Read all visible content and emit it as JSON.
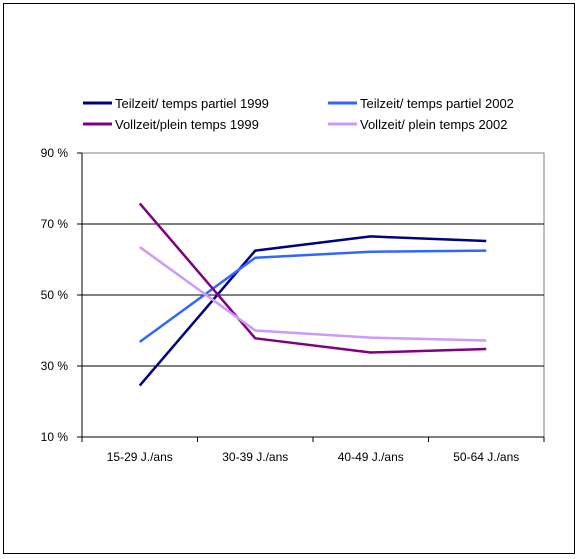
{
  "chart_data": {
    "type": "line",
    "title": "",
    "xlabel": "",
    "ylabel": "",
    "categories": [
      "15-29 J./ans",
      "30-39 J./ans",
      "40-49 J./ans",
      "50-64 J./ans"
    ],
    "ylim": [
      10,
      90
    ],
    "yticks": [
      10,
      30,
      50,
      70,
      90
    ],
    "ytick_labels": [
      "10 %",
      "30 %",
      "50 %",
      "70 %",
      "90 %"
    ],
    "grid": true,
    "legend_position": "top",
    "series": [
      {
        "name": "Teilzeit/ temps partiel 1999",
        "color": "#000080",
        "values": [
          24.5,
          62.5,
          66.5,
          65.2
        ]
      },
      {
        "name": "Teilzeit/ temps partiel 2002",
        "color": "#3366ff",
        "values": [
          36.8,
          60.5,
          62.2,
          62.5
        ]
      },
      {
        "name": "Vollzeit/plein temps 1999",
        "color": "#800080",
        "values": [
          75.8,
          37.8,
          33.8,
          34.8
        ]
      },
      {
        "name": "Vollzeit/ plein temps 2002",
        "color": "#cc99ff",
        "values": [
          63.5,
          40.0,
          38.0,
          37.2
        ]
      }
    ]
  }
}
